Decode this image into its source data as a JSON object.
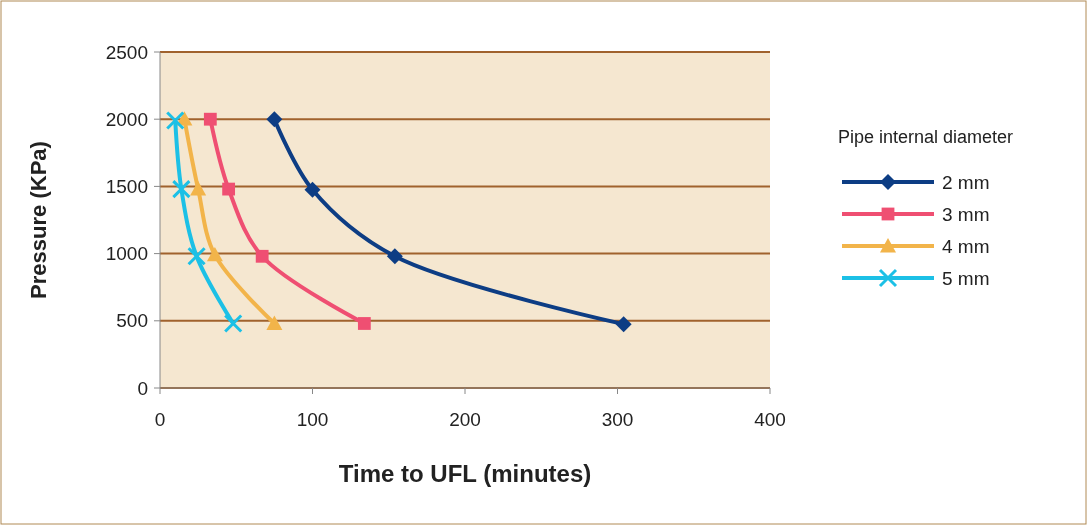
{
  "chart_data": {
    "type": "line",
    "xlabel": "Time to UFL (minutes)",
    "ylabel": "Pressure (KPa)",
    "legend_title": "Pipe internal diameter",
    "xlim": [
      0,
      400
    ],
    "xticks": [
      0,
      100,
      200,
      300,
      400
    ],
    "ylim": [
      0,
      2500
    ],
    "yticks": [
      0,
      500,
      1000,
      1500,
      2000,
      2500
    ],
    "grid": "y",
    "legend": "right",
    "line_style": "solid",
    "series": [
      {
        "name": "2 mm",
        "color": "#0d3d84",
        "marker": "diamond",
        "x": [
          75,
          100,
          154,
          304
        ],
        "values": [
          2000,
          1475,
          980,
          475
        ]
      },
      {
        "name": "3 mm",
        "color": "#ef4f72",
        "marker": "square",
        "x": [
          33,
          45,
          67,
          134
        ],
        "values": [
          2000,
          1480,
          980,
          480
        ]
      },
      {
        "name": "4 mm",
        "color": "#f2b44a",
        "marker": "triangle",
        "x": [
          16,
          25,
          36,
          75
        ],
        "values": [
          2000,
          1480,
          990,
          480
        ]
      },
      {
        "name": "5 mm",
        "color": "#1cc0e6",
        "marker": "cross",
        "x": [
          10,
          14,
          24,
          48
        ],
        "values": [
          1990,
          1480,
          980,
          480
        ]
      }
    ]
  }
}
